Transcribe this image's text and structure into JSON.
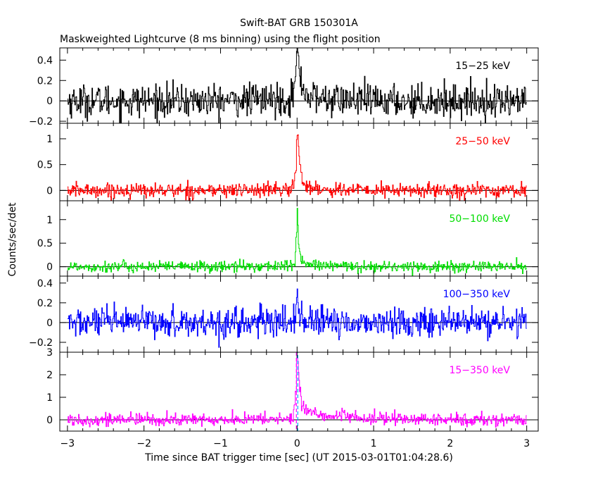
{
  "title": "Swift-BAT GRB 150301A",
  "subtitle": "Maskweighted Lightcurve (8 ms binning) using the flight position",
  "xlabel": "Time since BAT trigger time [sec] (UT 2015-03-01T01:04:28.6)",
  "ylabel": "Counts/sec/det",
  "chart_data": {
    "type": "line",
    "title": "Swift-BAT GRB 150301A",
    "subtitle": "Maskweighted Lightcurve (8 ms binning) using the flight position",
    "xlabel": "Time since BAT trigger time [sec] (UT 2015-03-01T01:04:28.6)",
    "ylabel": "Counts/sec/det",
    "xlim": [
      -3.1,
      3.15
    ],
    "x_ticks": [
      -3,
      -2,
      -1,
      0,
      1,
      2,
      3
    ],
    "x_tick_labels": [
      "−3",
      "−2",
      "−1",
      "0",
      "1",
      "2",
      "3"
    ],
    "grid": false,
    "panels": [
      {
        "name": "15−25 keV",
        "color": "#000000",
        "ylim": [
          -0.22,
          0.52
        ],
        "y_ticks": [
          -0.2,
          0,
          0.2,
          0.4
        ],
        "y_tick_labels": [
          "−0.2",
          "0",
          "0.2",
          "0.4"
        ],
        "noise_sigma": 0.08,
        "points": [
          [
            -3.0,
            0.0
          ],
          [
            -2.0,
            0.0
          ],
          [
            -1.0,
            0.0
          ],
          [
            -0.08,
            0.02
          ],
          [
            -0.02,
            0.2
          ],
          [
            0.0,
            0.48
          ],
          [
            0.01,
            0.45
          ],
          [
            0.03,
            0.3
          ],
          [
            0.06,
            0.15
          ],
          [
            0.15,
            0.05
          ],
          [
            0.3,
            0.02
          ],
          [
            1.0,
            0.0
          ],
          [
            2.0,
            0.0
          ],
          [
            3.0,
            0.0
          ]
        ]
      },
      {
        "name": "25−50 keV",
        "color": "#ff0000",
        "ylim": [
          -0.2,
          1.3
        ],
        "y_ticks": [
          0,
          0.5,
          1
        ],
        "y_tick_labels": [
          "0",
          "0.5",
          "1"
        ],
        "noise_sigma": 0.07,
        "points": [
          [
            -3.0,
            0.0
          ],
          [
            -2.0,
            0.0
          ],
          [
            -1.0,
            0.0
          ],
          [
            -0.05,
            0.02
          ],
          [
            -0.01,
            0.5
          ],
          [
            0.0,
            1.2
          ],
          [
            0.01,
            1.05
          ],
          [
            0.03,
            0.6
          ],
          [
            0.06,
            0.25
          ],
          [
            0.12,
            0.08
          ],
          [
            0.3,
            0.02
          ],
          [
            1.0,
            0.0
          ],
          [
            2.0,
            0.0
          ],
          [
            3.0,
            0.0
          ]
        ]
      },
      {
        "name": "50−100 keV",
        "color": "#00dd00",
        "ylim": [
          -0.2,
          1.4
        ],
        "y_ticks": [
          0,
          0.5,
          1
        ],
        "y_tick_labels": [
          "0",
          "0.5",
          "1"
        ],
        "noise_sigma": 0.06,
        "points": [
          [
            -3.0,
            0.0
          ],
          [
            -2.0,
            0.0
          ],
          [
            -1.0,
            0.0
          ],
          [
            -0.03,
            0.02
          ],
          [
            -0.005,
            0.7
          ],
          [
            0.0,
            1.3
          ],
          [
            0.01,
            1.0
          ],
          [
            0.02,
            0.5
          ],
          [
            0.05,
            0.2
          ],
          [
            0.1,
            0.05
          ],
          [
            0.3,
            0.02
          ],
          [
            1.0,
            0.0
          ],
          [
            2.0,
            0.0
          ],
          [
            3.0,
            0.0
          ]
        ]
      },
      {
        "name": "100−350 keV",
        "color": "#0000ff",
        "ylim": [
          -0.3,
          0.47
        ],
        "y_ticks": [
          -0.2,
          0,
          0.2,
          0.4
        ],
        "y_tick_labels": [
          "−0.2",
          "0",
          "0.2",
          "0.4"
        ],
        "noise_sigma": 0.075,
        "points": [
          [
            -3.0,
            0.0
          ],
          [
            -2.0,
            0.0
          ],
          [
            -1.0,
            0.0
          ],
          [
            -0.03,
            0.0
          ],
          [
            -0.005,
            0.25
          ],
          [
            0.0,
            0.45
          ],
          [
            0.01,
            0.3
          ],
          [
            0.03,
            0.1
          ],
          [
            0.1,
            0.0
          ],
          [
            1.0,
            0.0
          ],
          [
            2.0,
            0.0
          ],
          [
            3.0,
            0.0
          ]
        ]
      },
      {
        "name": "15−350 keV",
        "color": "#ff00ff",
        "ylim": [
          -0.5,
          3.0
        ],
        "y_ticks": [
          0,
          1,
          2,
          3
        ],
        "y_tick_labels": [
          "0",
          "1",
          "2",
          "3"
        ],
        "noise_sigma": 0.14,
        "points": [
          [
            -3.0,
            0.0
          ],
          [
            -2.0,
            0.0
          ],
          [
            -1.0,
            0.0
          ],
          [
            -0.05,
            0.05
          ],
          [
            -0.01,
            1.5
          ],
          [
            0.0,
            2.9
          ],
          [
            0.01,
            2.7
          ],
          [
            0.03,
            1.6
          ],
          [
            0.06,
            0.8
          ],
          [
            0.1,
            0.45
          ],
          [
            0.2,
            0.3
          ],
          [
            0.5,
            0.15
          ],
          [
            1.0,
            0.05
          ],
          [
            2.0,
            0.0
          ],
          [
            3.0,
            0.0
          ]
        ]
      }
    ],
    "markers": [
      {
        "x": 0.0,
        "style": "dashed",
        "colors": [
          "#ff00ff",
          "#00aaff"
        ]
      }
    ]
  }
}
